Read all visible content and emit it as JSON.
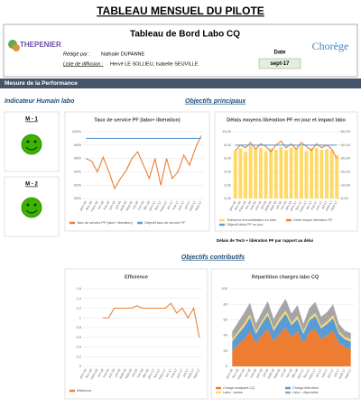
{
  "page_title": "TABLEAU MENSUEL DU PILOTE",
  "header": {
    "logo_left": "THEPENIER",
    "title": "Tableau de Bord Labo CQ",
    "author_label": "Rédigé par :",
    "author": "Nathalie DUPANNE",
    "diffusion_label": "Liste de diffusion :",
    "diffusion": "Hervé LE SOLLIEU, Isabelle SEUVILLE",
    "date_label": "Date",
    "date": "sept-17",
    "logo_right": "Chorège"
  },
  "section_bar": "Mesure de la Performance",
  "human": {
    "title": "Indicateur Humain labo",
    "indicators": [
      {
        "label": "M - 1"
      },
      {
        "label": "M - 2"
      }
    ]
  },
  "main_title": "Objectifs principaux",
  "contrib_title": "Objectifs contributifs",
  "note": "Délais de Tech + libération PF par rapport au délai",
  "months": [
    "janv-16",
    "févr-16",
    "mars-16",
    "avr-16",
    "mai-16",
    "juin-16",
    "juil-16",
    "août-16",
    "sept-16",
    "oct-16",
    "nov-16",
    "déc-16",
    "janv-17",
    "févr-17",
    "mars-17",
    "avr-17",
    "mai-17",
    "juin-17",
    "juil-17",
    "août-17",
    "sept-17"
  ],
  "charts": [
    {
      "type": "line",
      "title": "Taux de service PF (labo+ libération)",
      "ylim": [
        90,
        100
      ],
      "yticks": [
        {
          "value": 90,
          "label": "90%"
        },
        {
          "value": 92,
          "label": "92%"
        },
        {
          "value": 94,
          "label": "94%"
        },
        {
          "value": 96,
          "label": "96%"
        },
        {
          "value": 98,
          "label": "98%"
        },
        {
          "value": 100,
          "label": "100%"
        }
      ],
      "series": [
        {
          "name": "Taux de service PF (labo+ libération)",
          "color": "#ed7d31",
          "values": [
            96,
            95.6,
            94,
            96.2,
            94,
            91.5,
            93,
            94.2,
            96,
            97,
            95,
            93,
            96,
            92,
            96,
            93,
            94,
            96.5,
            95,
            97.5,
            99.4
          ]
        },
        {
          "name": "Objectif taux de service PF",
          "color": "#5b9bd5",
          "values": [
            99,
            99,
            99,
            99,
            99,
            99,
            99,
            99,
            99,
            99,
            99,
            99,
            99,
            99,
            99,
            99,
            99,
            99,
            99,
            99,
            99
          ]
        }
      ]
    },
    {
      "type": "combo",
      "title": "Délais moyens libération PF en jour et impact labo",
      "ylim": [
        0,
        10
      ],
      "yticks": [
        {
          "value": 0,
          "label": "0,00"
        },
        {
          "value": 2,
          "label": "2,00"
        },
        {
          "value": 4,
          "label": "4,00"
        },
        {
          "value": 6,
          "label": "6,00"
        },
        {
          "value": 8,
          "label": "8,00"
        },
        {
          "value": 10,
          "label": "10,00"
        }
      ],
      "y2lim": [
        0,
        50
      ],
      "y2ticks": [
        {
          "value": 0,
          "label": "0,00"
        },
        {
          "value": 10,
          "label": "10,00"
        },
        {
          "value": 20,
          "label": "20,00"
        },
        {
          "value": 30,
          "label": "30,00"
        },
        {
          "value": 40,
          "label": "40,00"
        },
        {
          "value": 50,
          "label": "50,00"
        }
      ],
      "series": [
        {
          "name": "Tolérance immobilisation en labo",
          "color": "#ffd966",
          "kind": "bar",
          "values": [
            7.2,
            7.5,
            7.0,
            7.8,
            7.4,
            7.6,
            7.1,
            7.5,
            7.3,
            7.7,
            7.2,
            7.6,
            7.4,
            7.8,
            7.1,
            7.5,
            7.6,
            7.3,
            7.4,
            7.2,
            6.5
          ]
        },
        {
          "name": "Délai moyen libération PF",
          "color": "#ed7d31",
          "kind": "line",
          "axis": "y2",
          "values": [
            36,
            40,
            38,
            42,
            37,
            41,
            39,
            35,
            40,
            43,
            38,
            41,
            37,
            42,
            39,
            36,
            41,
            38,
            40,
            37,
            30
          ]
        },
        {
          "name": "Objectif délai PF en jour",
          "color": "#5b9bd5",
          "kind": "line",
          "axis": "y2",
          "values": [
            40,
            40,
            40,
            40,
            40,
            40,
            40,
            40,
            40,
            40,
            40,
            40,
            40,
            40,
            40,
            40,
            40,
            40,
            40,
            40,
            40
          ]
        }
      ]
    },
    {
      "type": "line",
      "title": "Efficience",
      "ylim": [
        0,
        1.6
      ],
      "yticks": [
        0,
        {
          "value": 0.2,
          "label": "0,2"
        },
        {
          "value": 0.4,
          "label": "0,4"
        },
        {
          "value": 0.6,
          "label": "0,6"
        },
        {
          "value": 0.8,
          "label": "0,8"
        },
        1,
        {
          "value": 1.2,
          "label": "1,2"
        },
        {
          "value": 1.4,
          "label": "1,4"
        },
        {
          "value": 1.6,
          "label": "1,6"
        }
      ],
      "series": [
        {
          "name": "Efficience",
          "color": "#ed7d31",
          "values": [
            null,
            null,
            null,
            1.0,
            1.0,
            1.2,
            1.2,
            1.2,
            1.2,
            1.25,
            1.2,
            1.2,
            1.2,
            1.2,
            1.2,
            1.3,
            1.1,
            1.2,
            1.0,
            1.2,
            0.6
          ]
        }
      ]
    },
    {
      "type": "area",
      "title": "Répartition charges labo CQ",
      "ylim": [
        0,
        100
      ],
      "yticks": [
        0,
        20,
        40,
        60,
        80,
        100
      ],
      "series": [
        {
          "name": "Charge analyses CQ",
          "color": "#ed7d31",
          "values": [
            20,
            28,
            35,
            45,
            30,
            40,
            48,
            32,
            42,
            50,
            38,
            45,
            30,
            44,
            48,
            35,
            40,
            46,
            30,
            25,
            22
          ]
        },
        {
          "name": "Charge libération",
          "color": "#5b9bd5",
          "values": [
            12,
            14,
            16,
            18,
            12,
            15,
            18,
            14,
            16,
            18,
            15,
            16,
            12,
            15,
            17,
            14,
            15,
            16,
            12,
            10,
            10
          ]
        },
        {
          "name": "Labo : autres",
          "color": "#ffd966",
          "values": [
            3,
            3,
            4,
            4,
            3,
            3,
            4,
            3,
            4,
            4,
            3,
            4,
            3,
            3,
            4,
            3,
            3,
            4,
            3,
            3,
            3
          ]
        },
        {
          "name": "Labo : disponible",
          "color": "#a5a5a5",
          "values": [
            10,
            12,
            14,
            15,
            10,
            12,
            14,
            12,
            13,
            15,
            12,
            14,
            10,
            13,
            14,
            12,
            12,
            14,
            10,
            8,
            8
          ]
        }
      ]
    }
  ]
}
